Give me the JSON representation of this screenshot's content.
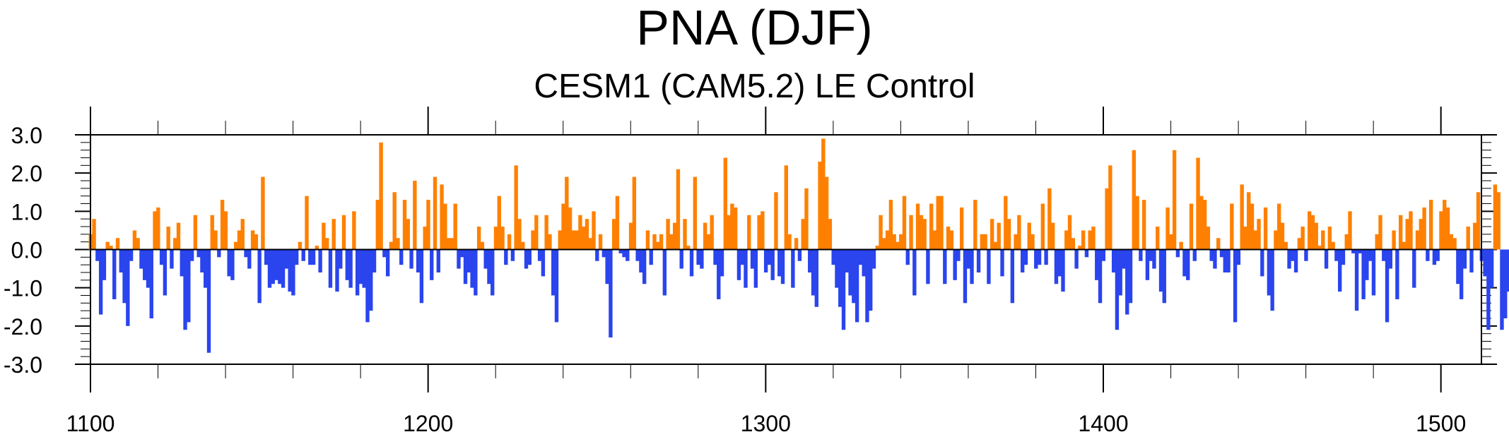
{
  "chart_data": {
    "type": "area",
    "title": "PNA (DJF)",
    "subtitle": "CESM1 (CAM5.2) LE Control",
    "xlabel": "",
    "ylabel": "",
    "xlim": [
      1100,
      1512
    ],
    "ylim": [
      -3.0,
      3.0
    ],
    "x_ticks": [
      1100,
      1200,
      1300,
      1400,
      1500
    ],
    "x_tick_labels": [
      "1100",
      "1200",
      "1300",
      "1400",
      "1500"
    ],
    "y_ticks": [
      -3,
      -2,
      -1,
      0,
      1,
      2,
      3
    ],
    "y_tick_labels": [
      "-3.0",
      "-2.0",
      "-1.0",
      "0.0",
      "1.0",
      "2.0",
      "3.0"
    ],
    "grid": false,
    "positive_color": "#ff8000",
    "negative_color": "#2a44ee",
    "x_start": 1100,
    "values": [
      0.4,
      0.8,
      -0.3,
      -1.7,
      -0.8,
      0.2,
      0.1,
      -1.3,
      0.3,
      -0.6,
      -1.4,
      -2.0,
      -0.3,
      0.5,
      0.3,
      -0.5,
      -0.8,
      -1.0,
      -1.8,
      1.0,
      1.1,
      -0.4,
      -1.2,
      0.6,
      -0.5,
      0.3,
      0.7,
      -0.7,
      -2.1,
      -1.9,
      -0.3,
      0.9,
      -0.2,
      -0.6,
      -1.0,
      -2.7,
      0.9,
      0.5,
      -0.2,
      1.3,
      1.0,
      -0.7,
      -0.8,
      0.2,
      0.5,
      0.8,
      -0.2,
      -0.5,
      0.5,
      0.4,
      -1.4,
      1.9,
      -0.4,
      -1.0,
      -0.9,
      -0.8,
      -0.9,
      -1.0,
      -0.5,
      -1.1,
      -1.2,
      -0.4,
      0.2,
      -0.3,
      1.4,
      -0.4,
      -0.4,
      0.1,
      -0.6,
      0.7,
      0.3,
      -1.0,
      0.8,
      -1.1,
      -0.5,
      0.9,
      -0.8,
      -1.0,
      1.0,
      -1.2,
      -0.9,
      -1.0,
      -1.9,
      -1.6,
      -0.6,
      1.3,
      2.8,
      -0.2,
      -0.7,
      0.2,
      1.5,
      0.3,
      -0.4,
      1.3,
      0.8,
      -0.5,
      1.8,
      -0.6,
      -1.4,
      0.6,
      1.3,
      -0.8,
      1.9,
      -0.6,
      1.7,
      1.2,
      0.3,
      0.3,
      1.2,
      -0.5,
      -0.2,
      -0.9,
      -0.6,
      -1.0,
      -1.2,
      0.6,
      0.2,
      -0.5,
      -0.9,
      -1.2,
      0.6,
      1.4,
      0.6,
      -0.4,
      0.4,
      -0.3,
      2.2,
      0.8,
      0.2,
      -0.5,
      -0.4,
      0.5,
      0.9,
      -0.3,
      -0.7,
      0.9,
      0.4,
      -1.2,
      -1.9,
      0.5,
      1.2,
      1.9,
      1.1,
      0.5,
      0.5,
      0.9,
      0.6,
      0.8,
      0.3,
      1.0,
      -0.3,
      0.4,
      -0.2,
      -0.9,
      -2.3,
      0.8,
      1.4,
      -0.1,
      -0.2,
      -0.3,
      0.7,
      1.9,
      -0.3,
      -0.6,
      -0.9,
      0.5,
      -0.4,
      0.4,
      0.2,
      0.4,
      -1.2,
      0.8,
      0.4,
      0.7,
      2.1,
      -0.5,
      0.8,
      0.1,
      -0.7,
      1.9,
      -0.4,
      -0.5,
      0.7,
      0.4,
      0.9,
      -0.4,
      -1.3,
      -0.7,
      2.4,
      0.9,
      1.2,
      1.1,
      -0.8,
      -0.4,
      -1.0,
      0.9,
      -0.5,
      -1.0,
      0.9,
      1.0,
      -0.6,
      -0.4,
      -0.8,
      1.5,
      -0.7,
      -0.9,
      2.2,
      0.4,
      -1.0,
      0.3,
      -0.3,
      0.8,
      1.6,
      -0.6,
      -1.2,
      -1.5,
      2.3,
      2.9,
      1.9,
      0.8,
      -0.4,
      -1.0,
      -1.5,
      -2.1,
      -0.6,
      -1.2,
      -1.4,
      -1.9,
      -0.4,
      -0.7,
      -1.9,
      -1.6,
      -0.5,
      0.1,
      0.9,
      0.3,
      0.5,
      1.3,
      0.4,
      0.2,
      0.4,
      1.4,
      -0.4,
      0.9,
      -1.2,
      1.2,
      0.9,
      0.8,
      -0.9,
      1.2,
      0.5,
      1.4,
      1.4,
      -0.9,
      0.6,
      0.5,
      -0.8,
      -0.3,
      1.1,
      -1.4,
      -0.5,
      -0.9,
      1.3,
      -0.6,
      0.4,
      0.4,
      -0.9,
      0.8,
      0.2,
      0.7,
      -0.7,
      1.4,
      0.8,
      -1.4,
      0.4,
      0.9,
      -0.6,
      -0.4,
      0.7,
      0.4,
      -0.5,
      -0.4,
      1.2,
      -0.4,
      1.6,
      0.7,
      -0.9,
      -0.7,
      -1.1,
      0.5,
      0.9,
      0.3,
      -0.5,
      0.1,
      0.5,
      -0.2,
      0.5,
      0.6,
      -0.8,
      -1.4,
      -0.3,
      1.6,
      2.2,
      -0.6,
      -2.1,
      -1.2,
      -0.5,
      -1.7,
      -1.4,
      2.6,
      1.4,
      -0.3,
      1.3,
      -0.8,
      -0.3,
      -0.5,
      0.6,
      -1.1,
      -1.4,
      1.1,
      0.4,
      2.6,
      -0.2,
      0.2,
      -0.7,
      -0.8,
      1.2,
      -0.3,
      2.4,
      1.4,
      1.3,
      0.6,
      -0.3,
      -0.5,
      0.3,
      -0.2,
      -0.6,
      -0.6,
      1.2,
      -1.9,
      -0.4,
      1.7,
      0.6,
      1.5,
      1.2,
      0.5,
      0.8,
      -0.7,
      1.1,
      -1.2,
      -1.6,
      0.5,
      1.2,
      0.7,
      0.2,
      -0.5,
      -0.3,
      -0.6,
      0.3,
      0.6,
      -0.3,
      1.0,
      0.9,
      0.7,
      0.1,
      0.5,
      -0.5,
      0.6,
      0.2,
      -0.3,
      -1.1,
      -0.4,
      0.4,
      1.0,
      -0.1,
      -1.6,
      -0.1,
      -1.3,
      -0.8,
      -0.3,
      -1.2,
      0.4,
      0.9,
      -0.3,
      -1.9,
      -0.5,
      0.5,
      -1.3,
      0.9,
      0.2,
      0.8,
      1.0,
      -1.0,
      0.5,
      0.8,
      1.1,
      -0.3,
      1.3,
      -0.4,
      -0.3,
      1.0,
      1.3,
      1.1,
      0.4,
      0.3,
      -0.9,
      -1.3,
      -0.5,
      0.6,
      -0.6,
      0.7,
      1.5,
      -0.3,
      -0.7,
      -2.1,
      -1.0,
      1.7,
      1.5,
      -2.1,
      -1.8,
      -1.1,
      1.3
    ]
  }
}
